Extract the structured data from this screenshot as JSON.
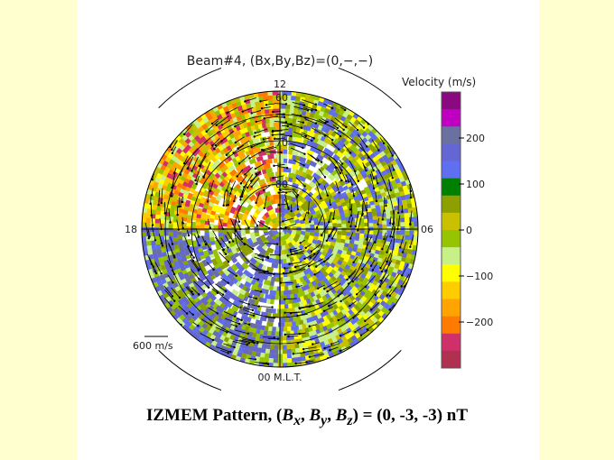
{
  "chart_data": {
    "type": "heatmap",
    "title": "Beam#4, (Bx,By,Bz)=(0,−,−)",
    "projection": "polar (magnetic latitude / MLT)",
    "mlt_labels": [
      "12",
      "18",
      "06",
      "00 M.L.T."
    ],
    "latitude_labels": [
      "60",
      "70",
      "80"
    ],
    "vector_scale_label": "600 m/s",
    "colorbar": {
      "label": "Velocity (m/s)",
      "ticks": [
        "200",
        "100",
        "0",
        "−100",
        "−200"
      ],
      "range": [
        -300,
        300
      ],
      "colors": [
        "#8a0880",
        "#c000c0",
        "#6a70a0",
        "#6466d4",
        "#5e70f0",
        "#008000",
        "#8ea000",
        "#c8c000",
        "#96c400",
        "#c8f088",
        "#ffff00",
        "#ffcc00",
        "#ffa400",
        "#ff7a00",
        "#d0306a",
        "#b03050"
      ]
    }
  },
  "caption": {
    "prefix": "IZMEM Pattern, (",
    "bx": "B",
    "bx_sub": "x",
    "by": "B",
    "by_sub": "y",
    "bz": "B",
    "bz_sub": "z",
    "suffix": ") = (0, -3, -3) nT"
  }
}
